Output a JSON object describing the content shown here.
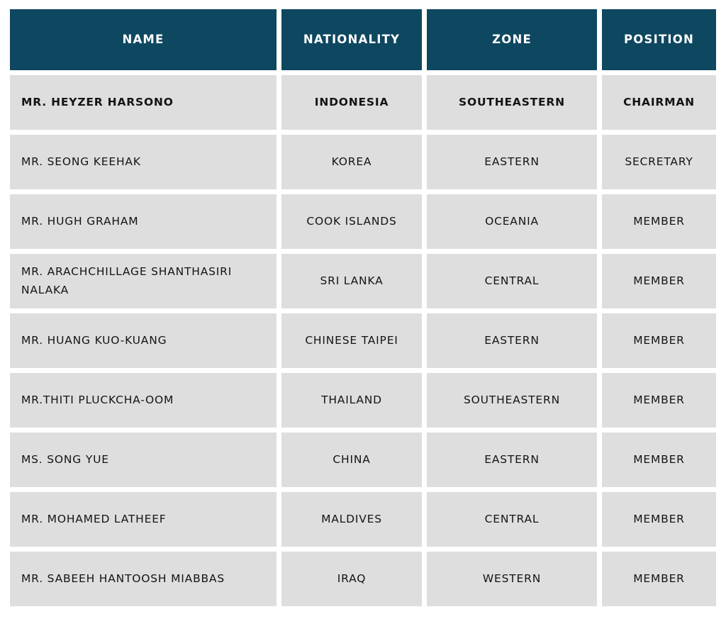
{
  "page": {
    "background": "#ffffff"
  },
  "colors": {
    "header_bg": "#0e4760",
    "header_text": "#ffffff",
    "cell_bg": "#dedede",
    "cell_text": "#141414",
    "gutter": "#ffffff"
  },
  "table": {
    "columns": [
      {
        "key": "name",
        "label": "NAME"
      },
      {
        "key": "nationality",
        "label": "NATIONALITY"
      },
      {
        "key": "zone",
        "label": "ZONE"
      },
      {
        "key": "position",
        "label": "POSITION"
      }
    ],
    "rows": [
      {
        "name": "MR. HEYZER HARSONO",
        "nationality": "INDONESIA",
        "zone": "SOUTHEASTERN",
        "position": "CHAIRMAN",
        "emphasis": true
      },
      {
        "name": "MR. SEONG KEEHAK",
        "nationality": "KOREA",
        "zone": "EASTERN",
        "position": "SECRETARY",
        "emphasis": false
      },
      {
        "name": "MR. HUGH GRAHAM",
        "nationality": "COOK ISLANDS",
        "zone": "OCEANIA",
        "position": "MEMBER",
        "emphasis": false
      },
      {
        "name": "MR. ARACHCHILLAGE SHANTHASIRI NALAKA",
        "nationality": "SRI LANKA",
        "zone": "CENTRAL",
        "position": "MEMBER",
        "emphasis": false
      },
      {
        "name": "MR. HUANG KUO-KUANG",
        "nationality": "CHINESE TAIPEI",
        "zone": "EASTERN",
        "position": "MEMBER",
        "emphasis": false
      },
      {
        "name": "MR.THITI PLUCKCHA-OOM",
        "nationality": "THAILAND",
        "zone": "SOUTHEASTERN",
        "position": "MEMBER",
        "emphasis": false
      },
      {
        "name": "MS. SONG YUE",
        "nationality": "CHINA",
        "zone": "EASTERN",
        "position": "MEMBER",
        "emphasis": false
      },
      {
        "name": "MR. MOHAMED LATHEEF",
        "nationality": "MALDIVES",
        "zone": "CENTRAL",
        "position": "MEMBER",
        "emphasis": false
      },
      {
        "name": "MR. SABEEH HANTOOSH MIABBAS",
        "nationality": "IRAQ",
        "zone": "WESTERN",
        "position": "MEMBER",
        "emphasis": false
      }
    ]
  },
  "chart_data": {
    "type": "table",
    "title": "",
    "columns": [
      "NAME",
      "NATIONALITY",
      "ZONE",
      "POSITION"
    ],
    "rows": [
      [
        "MR. HEYZER HARSONO",
        "INDONESIA",
        "SOUTHEASTERN",
        "CHAIRMAN"
      ],
      [
        "MR. SEONG KEEHAK",
        "KOREA",
        "EASTERN",
        "SECRETARY"
      ],
      [
        "MR. HUGH GRAHAM",
        "COOK ISLANDS",
        "OCEANIA",
        "MEMBER"
      ],
      [
        "MR. ARACHCHILLAGE SHANTHASIRI NALAKA",
        "SRI LANKA",
        "CENTRAL",
        "MEMBER"
      ],
      [
        "MR. HUANG KUO-KUANG",
        "CHINESE TAIPEI",
        "EASTERN",
        "MEMBER"
      ],
      [
        "MR.THITI PLUCKCHA-OOM",
        "THAILAND",
        "SOUTHEASTERN",
        "MEMBER"
      ],
      [
        "MS. SONG YUE",
        "CHINA",
        "EASTERN",
        "MEMBER"
      ],
      [
        "MR. MOHAMED LATHEEF",
        "MALDIVES",
        "CENTRAL",
        "MEMBER"
      ],
      [
        "MR. SABEEH HANTOOSH MIABBAS",
        "IRAQ",
        "WESTERN",
        "MEMBER"
      ]
    ],
    "layout": {
      "header_row": true,
      "alignment": {
        "name": "left",
        "nationality": "center",
        "zone": "center",
        "position": "center"
      },
      "emphasized_rows": [
        0
      ]
    }
  }
}
